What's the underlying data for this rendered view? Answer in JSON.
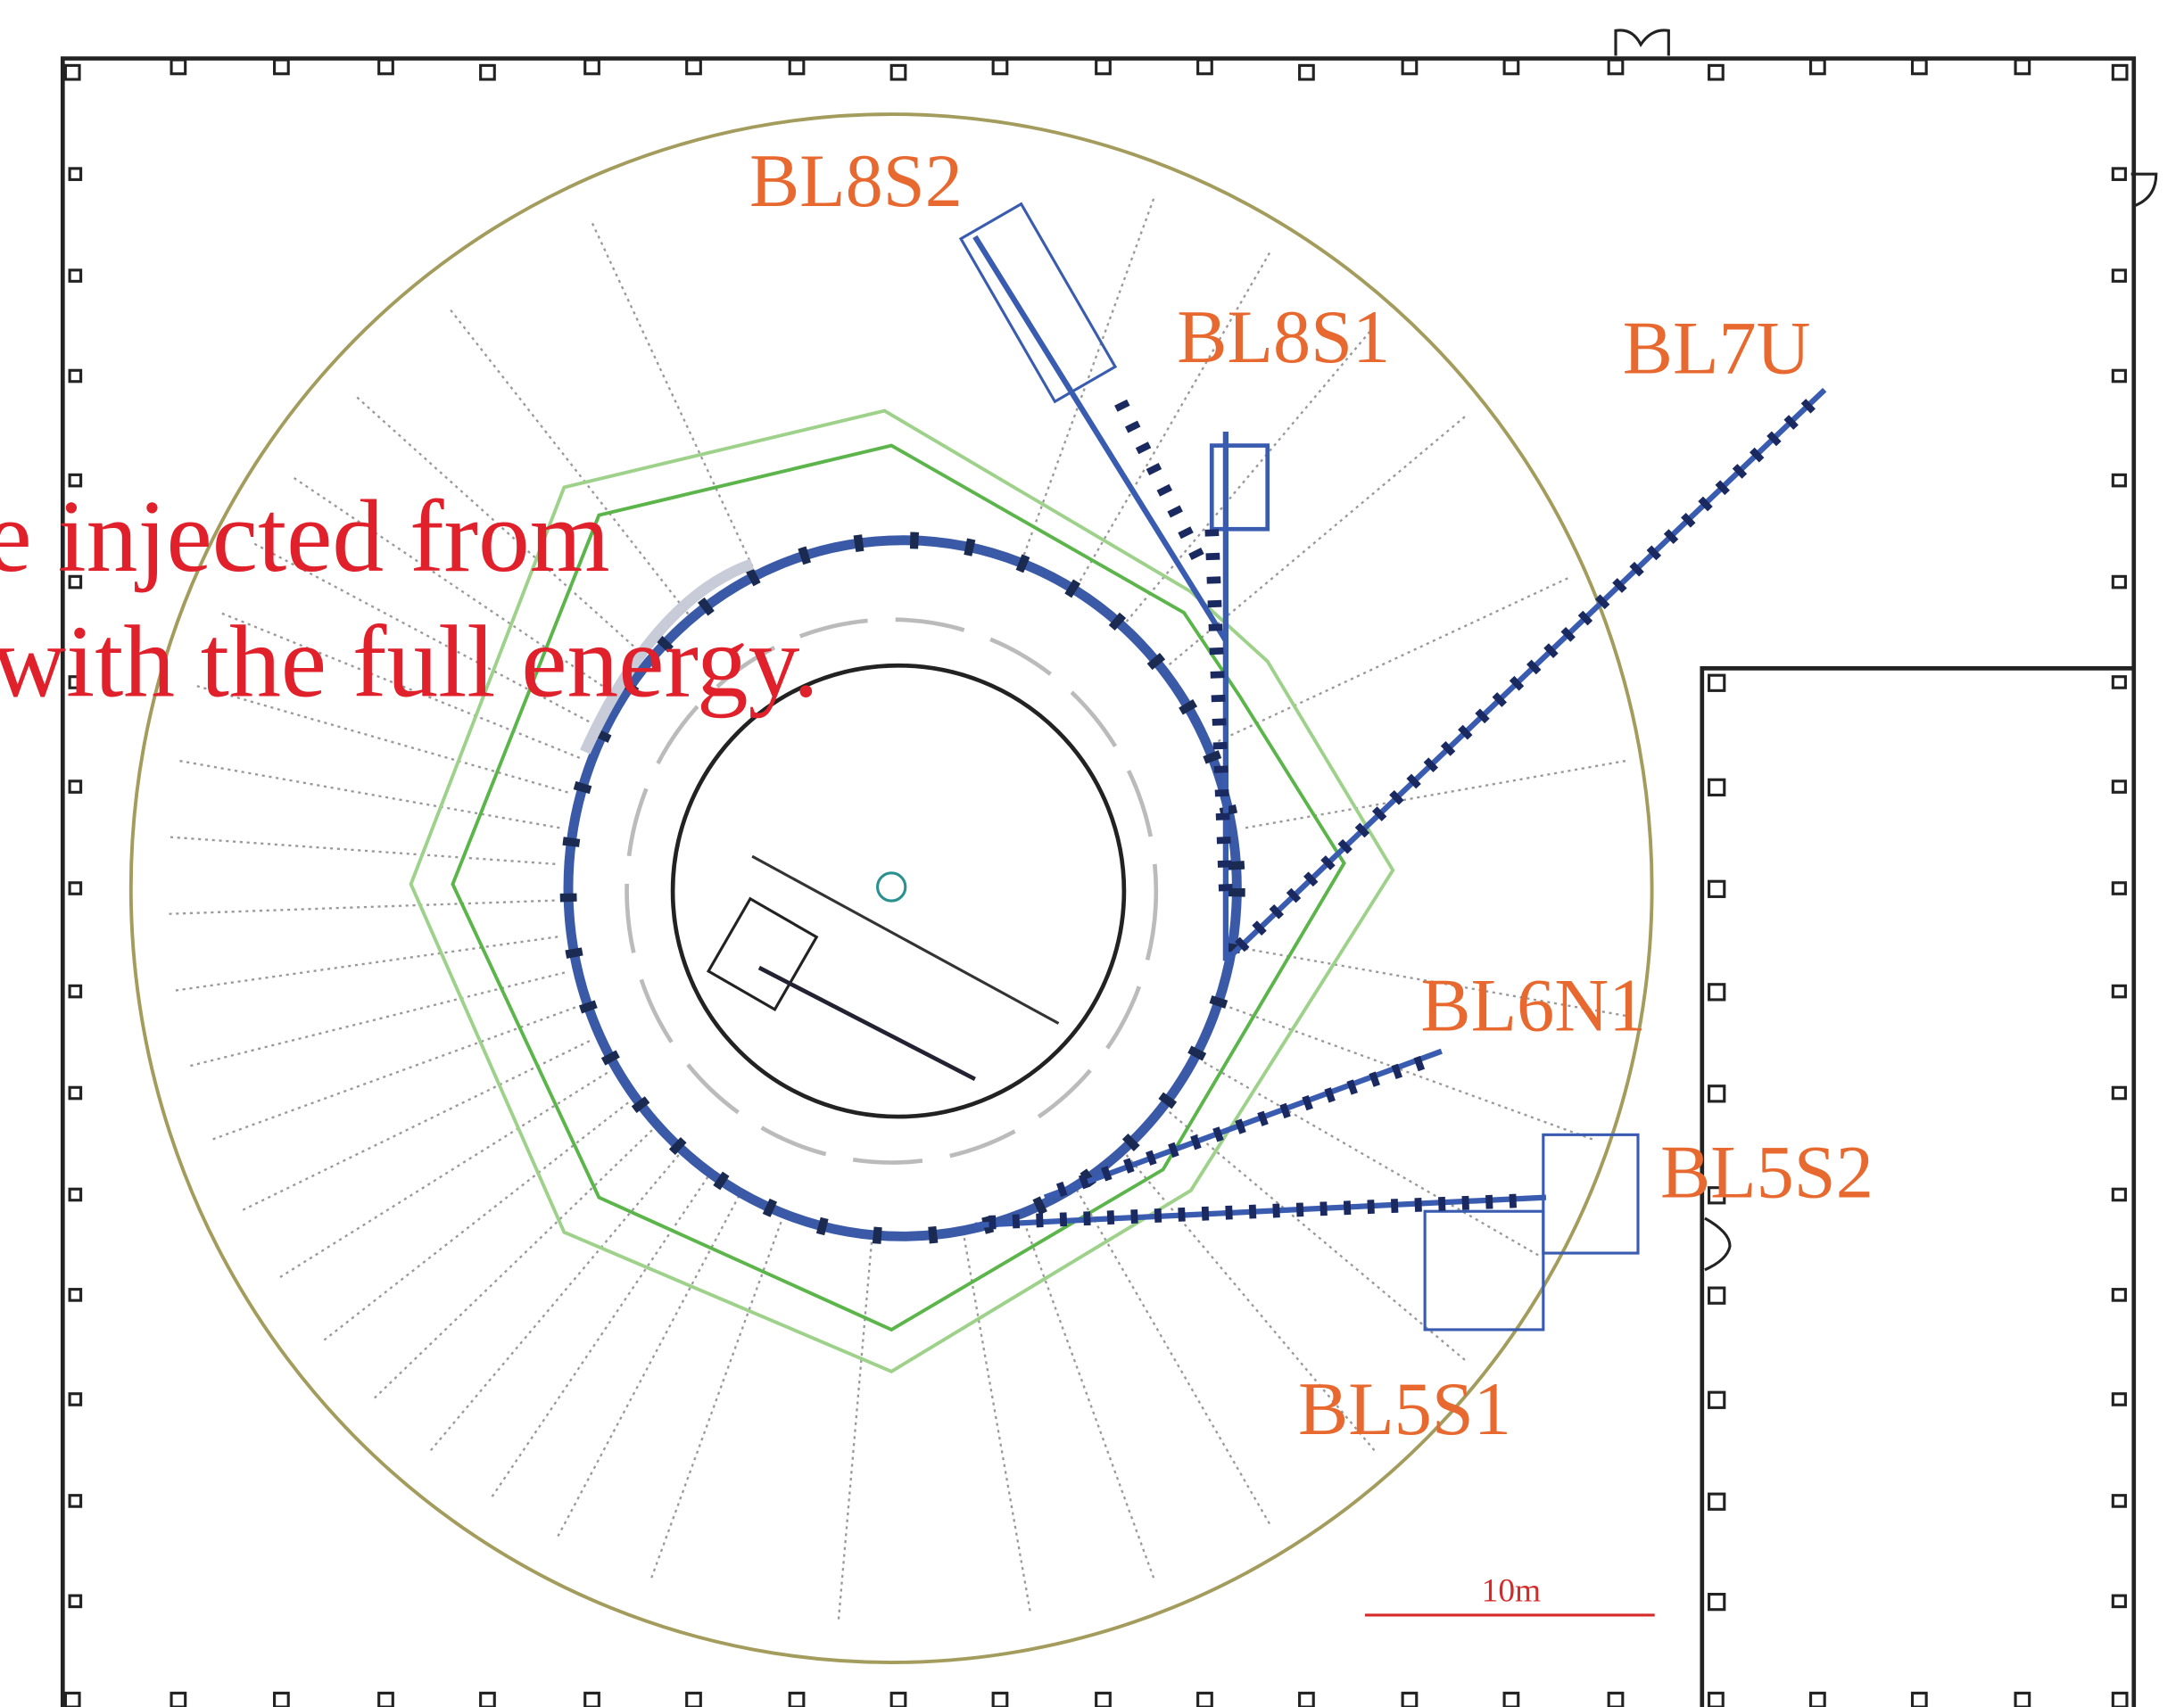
{
  "labels": {
    "bl8s2": "BL8S2",
    "bl8s1": "BL8S1",
    "bl7u": "BL7U",
    "bl6n1": "BL6N1",
    "bl5s2": "BL5S2",
    "bl5s1": "BL5S1"
  },
  "caption": {
    "line1": "e injected from",
    "line2": "with the full energy."
  },
  "scale_label": "10m"
}
